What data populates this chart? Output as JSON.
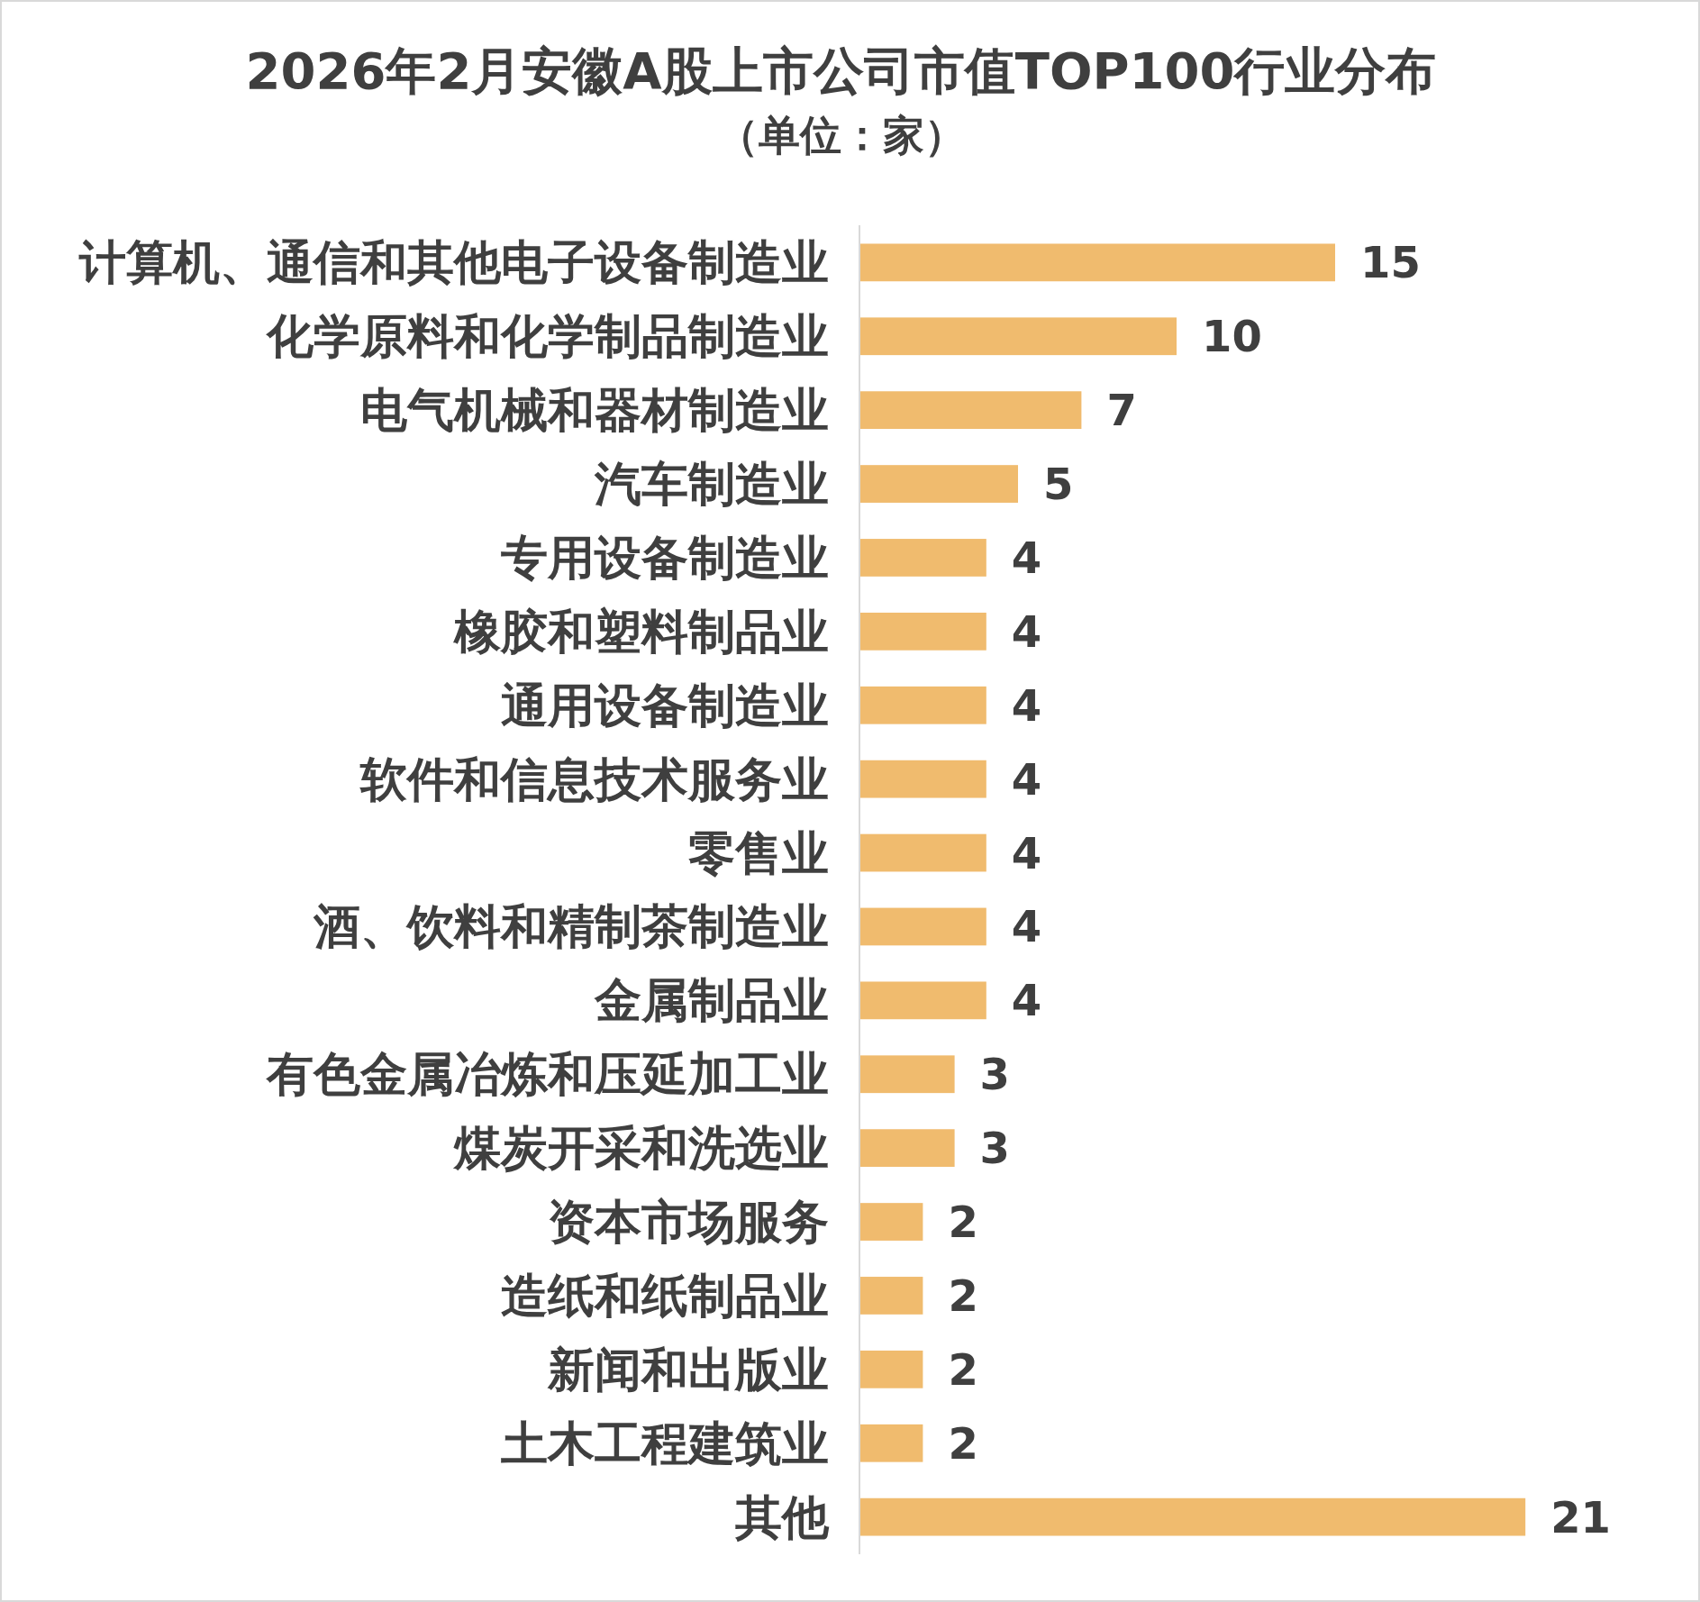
{
  "chart_data": {
    "type": "bar",
    "orientation": "horizontal",
    "title": "2026年2月安徽A股上市公司市值TOP100行业分布",
    "subtitle": "（单位：家）",
    "categories": [
      "计算机、通信和其他电子设备制造业",
      "化学原料和化学制品制造业",
      "电气机械和器材制造业",
      "汽车制造业",
      "专用设备制造业",
      "橡胶和塑料制品业",
      "通用设备制造业",
      "软件和信息技术服务业",
      "零售业",
      "酒、饮料和精制茶制造业",
      "金属制品业",
      "有色金属冶炼和压延加工业",
      "煤炭开采和洗选业",
      "资本市场服务",
      "造纸和纸制品业",
      "新闻和出版业",
      "土木工程建筑业",
      "其他"
    ],
    "values": [
      15,
      10,
      7,
      5,
      4,
      4,
      4,
      4,
      4,
      4,
      4,
      3,
      3,
      2,
      2,
      2,
      2,
      21
    ],
    "color": "#f0bb6e",
    "data_labels": true
  }
}
